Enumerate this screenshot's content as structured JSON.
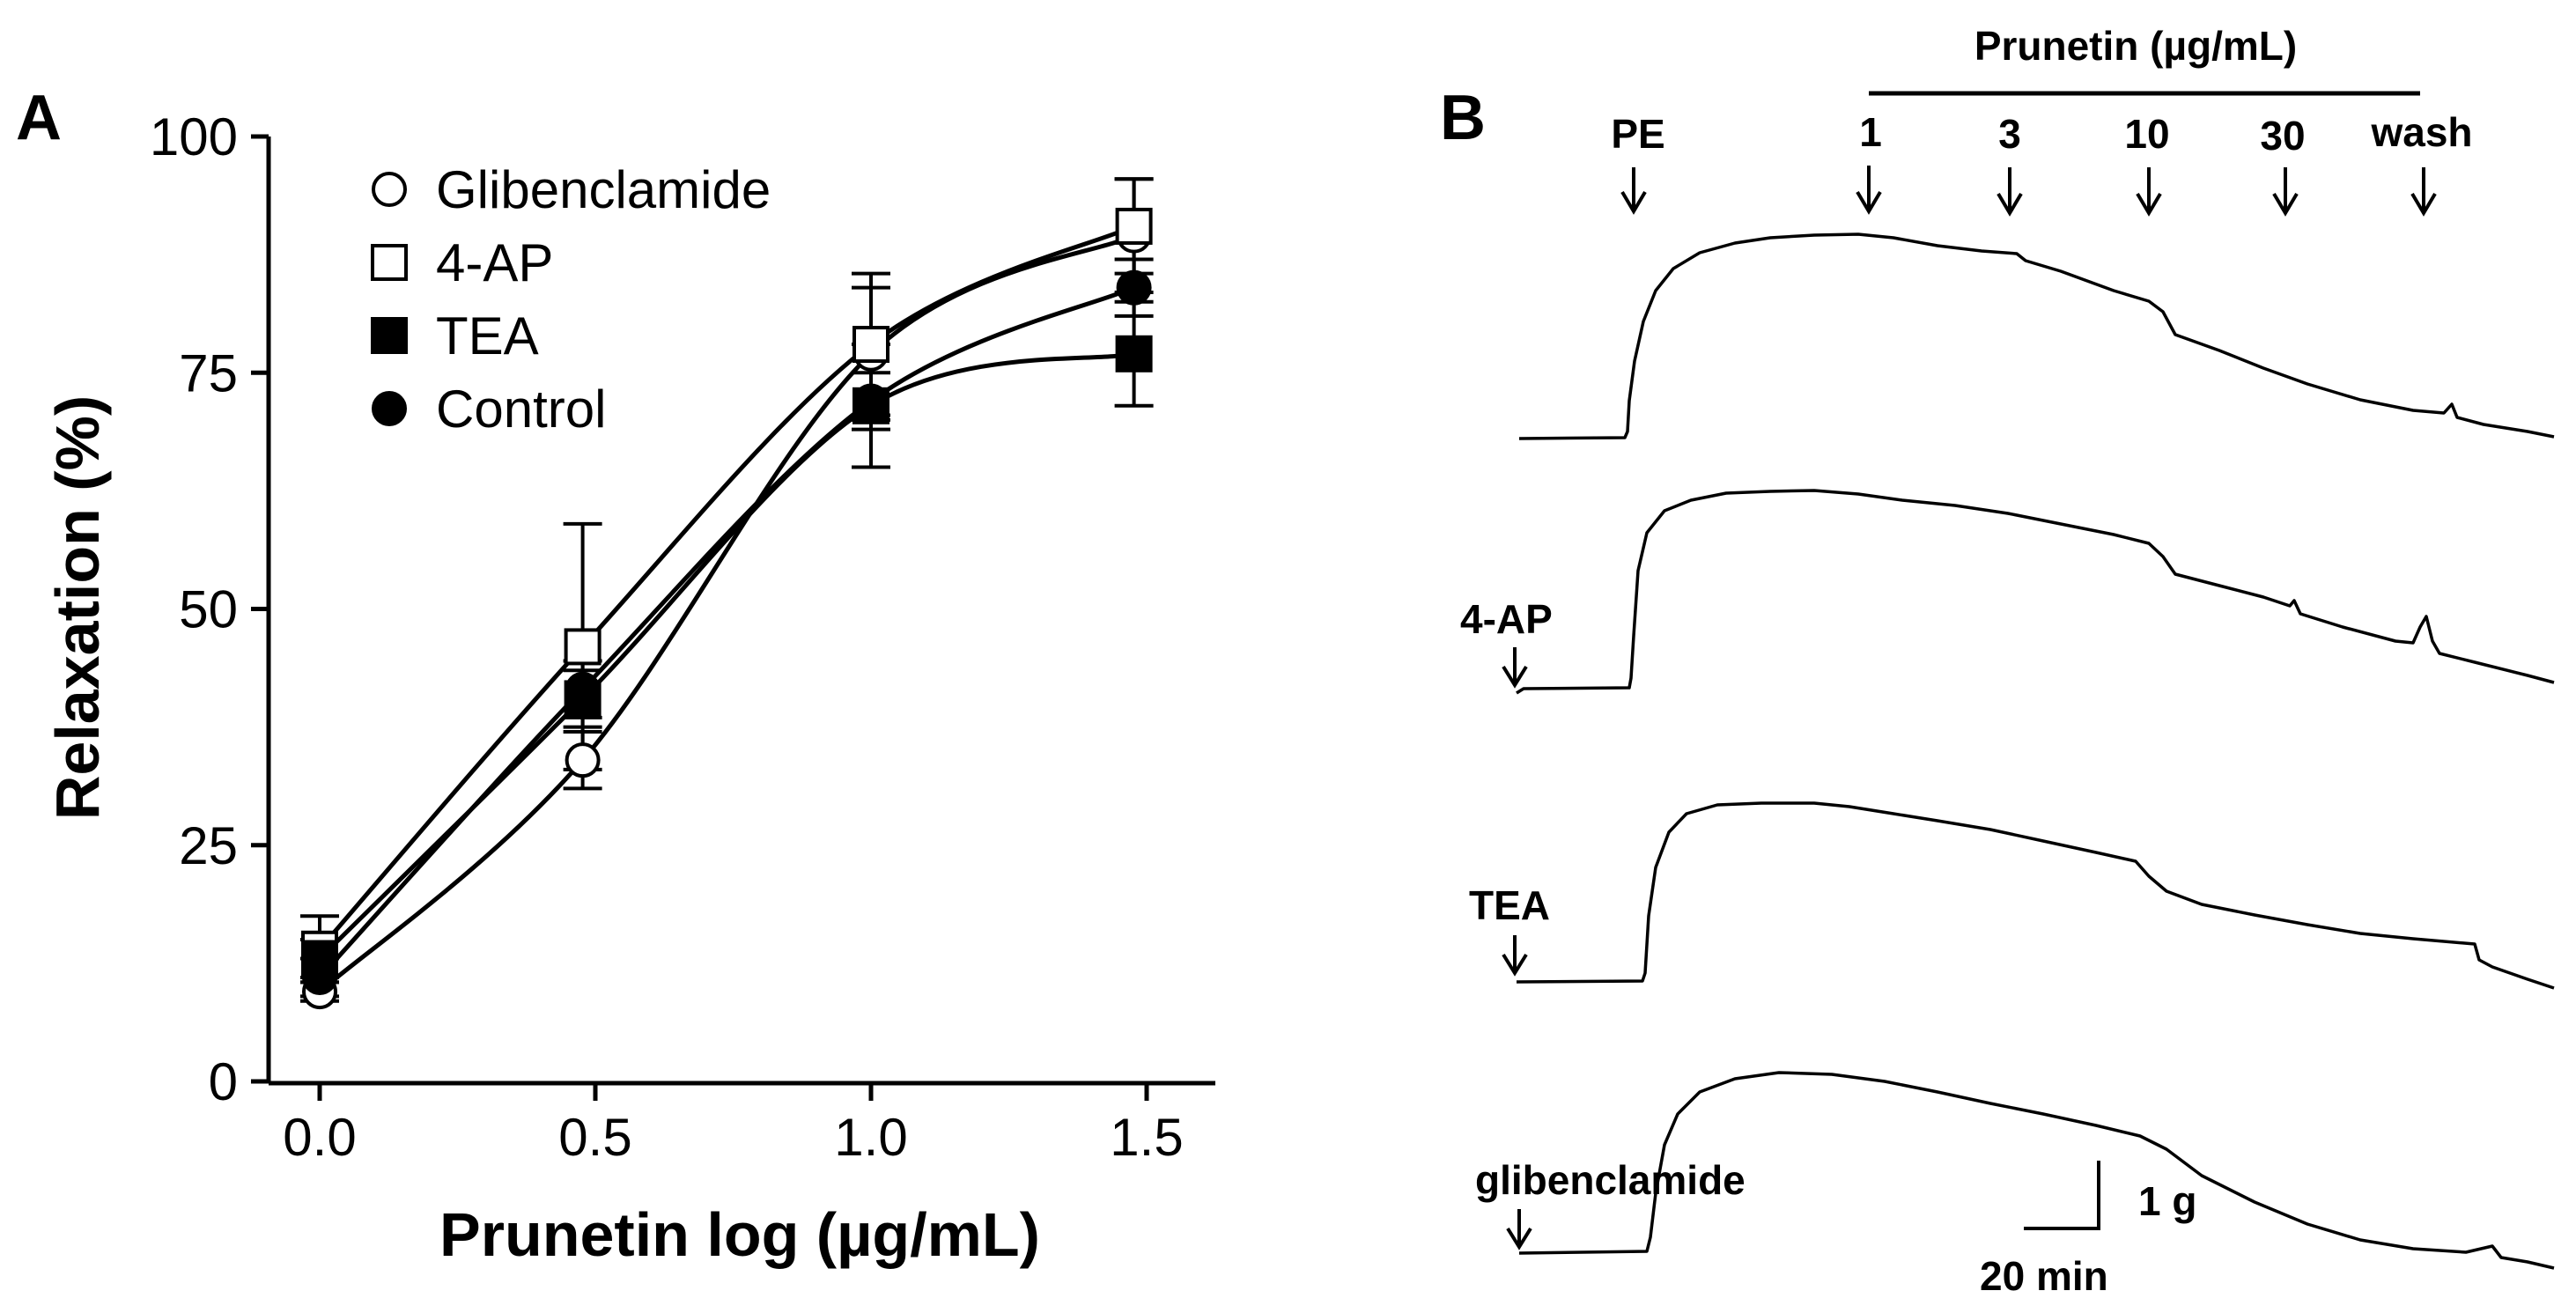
{
  "panel_a": {
    "letter": "A"
  },
  "panel_b": {
    "letter": "B",
    "bar_label": "Prunetin (µg/mL)",
    "event_labels": [
      "PE",
      "1",
      "3",
      "10",
      "30",
      "wash"
    ],
    "row_labels": [
      "4-AP",
      "TEA",
      "glibenclamide"
    ],
    "scale_force": "1 g",
    "scale_time": "20 min"
  },
  "chart_data": [
    {
      "type": "scatter",
      "panel": "A",
      "title": "",
      "xlabel": "Prunetin log (µg/mL)",
      "ylabel": "Relaxation (%)",
      "xlim": [
        -0.1,
        1.6
      ],
      "ylim": [
        0,
        100
      ],
      "xticks": [
        0.0,
        0.5,
        1.0,
        1.5
      ],
      "xtick_labels": [
        "0.0",
        "0.5",
        "1.0",
        "1.5"
      ],
      "yticks": [
        0,
        25,
        50,
        75,
        100
      ],
      "ytick_labels": [
        "0",
        "25",
        "50",
        "75",
        "100"
      ],
      "grid": false,
      "legend_position": "top-left",
      "x": [
        0.0,
        0.477,
        1.0,
        1.477
      ],
      "series": [
        {
          "name": "Glibenclamide",
          "marker": "open-circle",
          "values": [
            9.5,
            34,
            77,
            89.5
          ],
          "errors": [
            1,
            3,
            7,
            6
          ]
        },
        {
          "name": "4-AP",
          "marker": "open-square",
          "values": [
            14,
            46,
            78,
            90.5
          ],
          "errors": [
            3.5,
            13,
            7.5,
            5
          ]
        },
        {
          "name": "TEA",
          "marker": "filled-square",
          "values": [
            13,
            40.5,
            71.5,
            77
          ],
          "errors": [
            2,
            3,
            6.5,
            5.5
          ]
        },
        {
          "name": "Control",
          "marker": "filled-circle",
          "values": [
            11,
            41.5,
            72,
            84
          ],
          "errors": [
            2,
            3,
            3,
            3
          ]
        }
      ]
    }
  ]
}
